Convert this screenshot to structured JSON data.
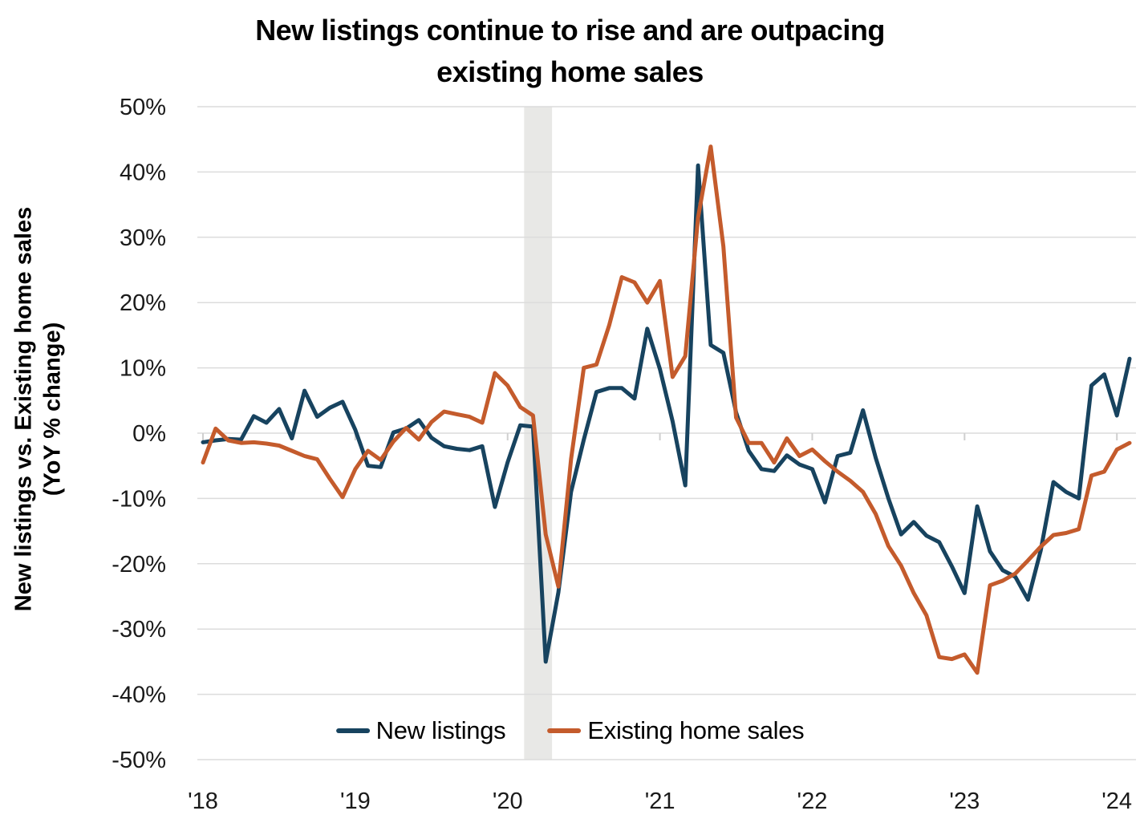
{
  "chart_data": {
    "type": "line",
    "title": "New listings continue to rise and are outpacing existing home sales",
    "title_lines": [
      "New listings continue to rise and are outpacing",
      "existing home sales"
    ],
    "ylabel": "New listings vs. Existing home sales (YoY % change)",
    "ylabel_lines": [
      "New listings vs. Existing home sales",
      "(YoY % change)"
    ],
    "xlabel": "",
    "ylim": [
      -50,
      50
    ],
    "grid": "horizontal",
    "gridline_color": "#DCDCDC",
    "legend_position": "bottom-center-inside",
    "y_ticks": [
      {
        "value": 50,
        "label": "50%"
      },
      {
        "value": 40,
        "label": "40%"
      },
      {
        "value": 30,
        "label": "30%"
      },
      {
        "value": 20,
        "label": "20%"
      },
      {
        "value": 10,
        "label": "10%"
      },
      {
        "value": 0,
        "label": "0%"
      },
      {
        "value": -10,
        "label": "-10%"
      },
      {
        "value": -20,
        "label": "-20%"
      },
      {
        "value": -30,
        "label": "-30%"
      },
      {
        "value": -40,
        "label": "-40%"
      },
      {
        "value": -50,
        "label": "-50%"
      }
    ],
    "x_ticks": [
      {
        "month": "2018-01",
        "label": "'18"
      },
      {
        "month": "2019-01",
        "label": "'19"
      },
      {
        "month": "2020-01",
        "label": "'20"
      },
      {
        "month": "2021-01",
        "label": "'21"
      },
      {
        "month": "2022-01",
        "label": "'22"
      },
      {
        "month": "2023-01",
        "label": "'23"
      },
      {
        "month": "2024-01",
        "label": "'24"
      }
    ],
    "recession_band": {
      "start_month": "2020-02",
      "end_month": "2020-04",
      "color": "#E8E8E6"
    },
    "months": [
      "2018-01",
      "2018-02",
      "2018-03",
      "2018-04",
      "2018-05",
      "2018-06",
      "2018-07",
      "2018-08",
      "2018-09",
      "2018-10",
      "2018-11",
      "2018-12",
      "2019-01",
      "2019-02",
      "2019-03",
      "2019-04",
      "2019-05",
      "2019-06",
      "2019-07",
      "2019-08",
      "2019-09",
      "2019-10",
      "2019-11",
      "2019-12",
      "2020-01",
      "2020-02",
      "2020-03",
      "2020-04",
      "2020-05",
      "2020-06",
      "2020-07",
      "2020-08",
      "2020-09",
      "2020-10",
      "2020-11",
      "2020-12",
      "2021-01",
      "2021-02",
      "2021-03",
      "2021-04",
      "2021-05",
      "2021-06",
      "2021-07",
      "2021-08",
      "2021-09",
      "2021-10",
      "2021-11",
      "2021-12",
      "2022-01",
      "2022-02",
      "2022-03",
      "2022-04",
      "2022-05",
      "2022-06",
      "2022-07",
      "2022-08",
      "2022-09",
      "2022-10",
      "2022-11",
      "2022-12",
      "2023-01",
      "2023-02",
      "2023-03",
      "2023-04",
      "2023-05",
      "2023-06",
      "2023-07",
      "2023-08",
      "2023-09",
      "2023-10",
      "2023-11",
      "2023-12",
      "2024-01",
      "2024-02"
    ],
    "series": [
      {
        "name": "New listings",
        "color": "#17435F",
        "values": [
          -1.4,
          -1.1,
          -0.9,
          -1.0,
          2.6,
          1.6,
          3.7,
          -0.8,
          6.5,
          2.5,
          3.9,
          4.8,
          0.5,
          -5.0,
          -5.2,
          0.1,
          0.7,
          2.0,
          -0.7,
          -2.0,
          -2.4,
          -2.6,
          -2.0,
          -11.3,
          -4.5,
          1.2,
          1.0,
          -35.0,
          -24.4,
          -9.0,
          -1.0,
          6.3,
          6.9,
          6.9,
          5.3,
          16.0,
          9.8,
          1.8,
          -8.0,
          41.0,
          13.5,
          12.3,
          3.2,
          -2.7,
          -5.5,
          -5.8,
          -3.4,
          -4.8,
          -5.5,
          -10.6,
          -3.5,
          -3.0,
          3.5,
          -3.8,
          -10.0,
          -15.5,
          -13.6,
          -15.7,
          -16.7,
          -20.4,
          -24.5,
          -11.2,
          -18.1,
          -21.0,
          -22.0,
          -25.5,
          -18.0,
          -7.5,
          -9.0,
          -10.0,
          7.3,
          9.0,
          2.7,
          11.4
        ]
      },
      {
        "name": "Existing home sales",
        "color": "#C45B2C",
        "values": [
          -4.5,
          0.7,
          -1.1,
          -1.5,
          -1.4,
          -1.6,
          -1.9,
          -2.7,
          -3.5,
          -4.0,
          -7.0,
          -9.8,
          -5.5,
          -2.7,
          -4.1,
          -1.3,
          0.8,
          -1.0,
          1.7,
          3.3,
          2.9,
          2.5,
          1.6,
          9.2,
          7.3,
          4.0,
          2.7,
          -15.5,
          -23.5,
          -4.0,
          10.0,
          10.5,
          16.5,
          23.9,
          23.1,
          20.0,
          23.3,
          8.6,
          11.8,
          33.0,
          43.9,
          28.6,
          2.4,
          -1.5,
          -1.5,
          -4.5,
          -0.8,
          -3.5,
          -2.5,
          -4.3,
          -5.9,
          -7.3,
          -9.0,
          -12.4,
          -17.3,
          -20.3,
          -24.5,
          -27.9,
          -34.3,
          -34.6,
          -33.9,
          -36.7,
          -23.3,
          -22.6,
          -21.5,
          -19.5,
          -17.4,
          -15.6,
          -15.3,
          -14.7,
          -6.5,
          -5.9,
          -2.5,
          -1.5
        ]
      }
    ]
  }
}
